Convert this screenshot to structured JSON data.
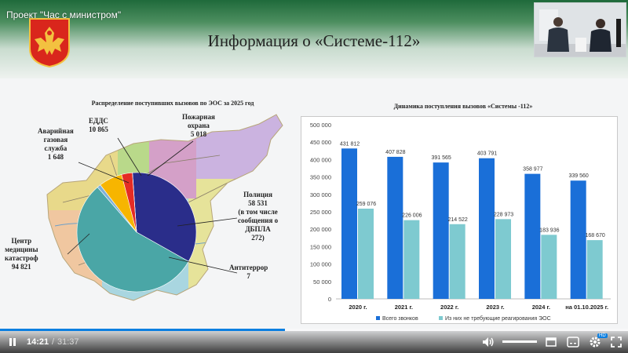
{
  "project_title": "Проект \"Час с министром\"",
  "slide": {
    "title": "Информация о «Системе-112»",
    "left": {
      "title": "Распределение поступивших вызовов по ЭОС за 2025 год",
      "slices": [
        {
          "name": "Центр медицины катастроф",
          "value": 94821,
          "color": "#4aa6a6"
        },
        {
          "name": "Полиция",
          "value": 58531,
          "color": "#2a2d8a"
        },
        {
          "name": "ЕДДС",
          "value": 10865,
          "color": "#f7b500"
        },
        {
          "name": "Пожарная охрана",
          "value": 5018,
          "color": "#e52c24"
        },
        {
          "name": "Аварийная газовая служба",
          "value": 1648,
          "color": "#7fb1d8"
        },
        {
          "name": "Антитеррор",
          "value": 7,
          "color": "#777777"
        }
      ],
      "labels": {
        "gas": [
          "Аварийная",
          "газовая",
          "служба",
          "1 648"
        ],
        "edds": [
          "ЕДДС",
          "10 865"
        ],
        "fire": [
          "Пожарная",
          "охрана",
          "5 018"
        ],
        "police": [
          "Полиция",
          "58 531",
          "(в том числе",
          "сообщения о",
          "ДБПЛА",
          "272)"
        ],
        "medical": [
          "Центр",
          "медицины",
          "катастроф",
          "94 821"
        ],
        "antiterror": [
          "Антитеррор",
          "7"
        ]
      },
      "map_colors": [
        "#e8d98a",
        "#b9d98a",
        "#cbb3e0",
        "#f0c7a0",
        "#a9d6e0",
        "#e6e39a",
        "#d4a0c8"
      ]
    },
    "right": {
      "title": "Динамика поступления вызовов «Системы -112»"
    }
  },
  "chart_data": {
    "type": "bar",
    "title": "Динамика поступления вызовов «Системы -112»",
    "categories": [
      "2020 г.",
      "2021 г.",
      "2022 г.",
      "2023 г.",
      "2024 г.",
      "на 01.10.2025 г."
    ],
    "series": [
      {
        "name": "Всего звонков",
        "values": [
          431812,
          407828,
          391565,
          403791,
          358977,
          339560
        ],
        "color": "#1a6fd8",
        "labels": [
          "431 812",
          "407 828",
          "391 565",
          "403 791",
          "358 977",
          "339 560"
        ]
      },
      {
        "name": "Из них не требующие реагирования ЭОС",
        "values": [
          259076,
          226006,
          214522,
          228973,
          183936,
          168670
        ],
        "color": "#7ecad0",
        "labels": [
          "259 076",
          "226 006",
          "214 522",
          "228 973",
          "183 936",
          "168 670"
        ]
      }
    ],
    "ylim": [
      0,
      500000
    ],
    "yticks": [
      0,
      50000,
      100000,
      150000,
      200000,
      250000,
      300000,
      350000,
      400000,
      450000,
      500000
    ],
    "ytick_labels": [
      "0",
      "50 000",
      "100 000",
      "150 000",
      "200 000",
      "250 000",
      "300 000",
      "350 000",
      "400 000",
      "450 000",
      "500 000"
    ],
    "legend_position": "bottom",
    "grid": false
  },
  "player": {
    "current_time": "14:21",
    "separator": "/",
    "duration": "31:37",
    "progress": 0.454,
    "volume": 1.0,
    "settings_badge": "HD"
  }
}
